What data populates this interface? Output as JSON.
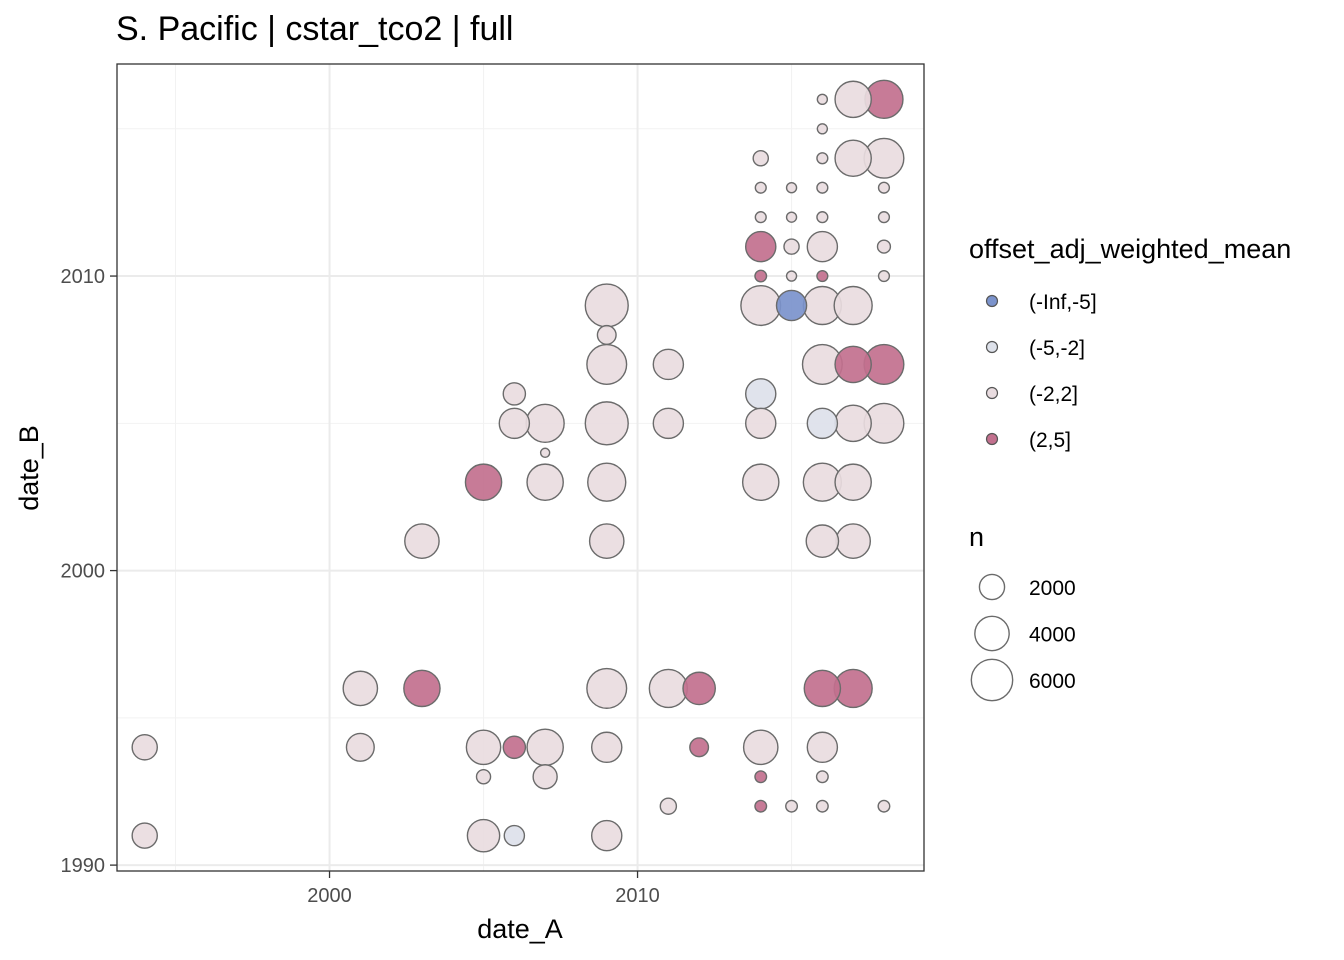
{
  "chart_data": {
    "type": "scatter",
    "title": "S. Pacific | cstar_tco2 | full",
    "xlabel": "date_A",
    "ylabel": "date_B",
    "xlim": [
      1993.1,
      2019.3
    ],
    "ylim": [
      1989.8,
      2017.2
    ],
    "x_ticks": [
      2000,
      2010
    ],
    "y_ticks": [
      1990,
      2000,
      2010
    ],
    "grid": true,
    "legend_position": "right",
    "color_legend": {
      "title": "offset_adj_weighted_mean",
      "entries": [
        {
          "label": "(-Inf,-5]",
          "color": "#7b93cc"
        },
        {
          "label": "(-5,-2]",
          "color": "#dde1ea"
        },
        {
          "label": "(-2,2]",
          "color": "#e9dce0"
        },
        {
          "label": "(2,5]",
          "color": "#c2708e"
        }
      ]
    },
    "size_legend": {
      "title": "n",
      "entries": [
        {
          "label": "2000",
          "value": 2000
        },
        {
          "label": "4000",
          "value": 4000
        },
        {
          "label": "6000",
          "value": 6000
        }
      ]
    },
    "points": [
      {
        "x": 1994,
        "y": 1994,
        "n": 2000,
        "bin": "(-2,2]"
      },
      {
        "x": 1994,
        "y": 1991,
        "n": 2000,
        "bin": "(-2,2]"
      },
      {
        "x": 2001,
        "y": 1996,
        "n": 4000,
        "bin": "(-2,2]"
      },
      {
        "x": 2001,
        "y": 1994,
        "n": 2500,
        "bin": "(-2,2]"
      },
      {
        "x": 2003,
        "y": 2001,
        "n": 4000,
        "bin": "(-2,2]"
      },
      {
        "x": 2003,
        "y": 1996,
        "n": 4500,
        "bin": "(2,5]"
      },
      {
        "x": 2005,
        "y": 2003,
        "n": 4500,
        "bin": "(2,5]"
      },
      {
        "x": 2005,
        "y": 1994,
        "n": 4000,
        "bin": "(-2,2]"
      },
      {
        "x": 2005,
        "y": 1993,
        "n": 500,
        "bin": "(-2,2]"
      },
      {
        "x": 2005,
        "y": 1991,
        "n": 3500,
        "bin": "(-2,2]"
      },
      {
        "x": 2006,
        "y": 2006,
        "n": 1500,
        "bin": "(-2,2]"
      },
      {
        "x": 2006,
        "y": 2005,
        "n": 3000,
        "bin": "(-2,2]"
      },
      {
        "x": 2006,
        "y": 1994,
        "n": 1500,
        "bin": "(2,5]"
      },
      {
        "x": 2006,
        "y": 1991,
        "n": 1200,
        "bin": "(-5,-2]"
      },
      {
        "x": 2007,
        "y": 2005,
        "n": 5000,
        "bin": "(-2,2]"
      },
      {
        "x": 2007,
        "y": 2004,
        "n": 150,
        "bin": "(-2,2]"
      },
      {
        "x": 2007,
        "y": 2003,
        "n": 4500,
        "bin": "(-2,2]"
      },
      {
        "x": 2007,
        "y": 1994,
        "n": 4500,
        "bin": "(-2,2]"
      },
      {
        "x": 2007,
        "y": 1993,
        "n": 1800,
        "bin": "(-2,2]"
      },
      {
        "x": 2009,
        "y": 2009,
        "n": 6500,
        "bin": "(-2,2]"
      },
      {
        "x": 2009,
        "y": 2008,
        "n": 1000,
        "bin": "(-2,2]"
      },
      {
        "x": 2009,
        "y": 2007,
        "n": 5500,
        "bin": "(-2,2]"
      },
      {
        "x": 2009,
        "y": 2005,
        "n": 6500,
        "bin": "(-2,2]"
      },
      {
        "x": 2009,
        "y": 2003,
        "n": 5000,
        "bin": "(-2,2]"
      },
      {
        "x": 2009,
        "y": 2001,
        "n": 4000,
        "bin": "(-2,2]"
      },
      {
        "x": 2009,
        "y": 1996,
        "n": 5500,
        "bin": "(-2,2]"
      },
      {
        "x": 2009,
        "y": 1994,
        "n": 3000,
        "bin": "(-2,2]"
      },
      {
        "x": 2009,
        "y": 1991,
        "n": 3000,
        "bin": "(-2,2]"
      },
      {
        "x": 2011,
        "y": 2007,
        "n": 3000,
        "bin": "(-2,2]"
      },
      {
        "x": 2011,
        "y": 2005,
        "n": 3000,
        "bin": "(-2,2]"
      },
      {
        "x": 2011,
        "y": 1996,
        "n": 5000,
        "bin": "(-2,2]"
      },
      {
        "x": 2011,
        "y": 1992,
        "n": 700,
        "bin": "(-2,2]"
      },
      {
        "x": 2012,
        "y": 1996,
        "n": 3500,
        "bin": "(2,5]"
      },
      {
        "x": 2012,
        "y": 1994,
        "n": 1000,
        "bin": "(2,5]"
      },
      {
        "x": 2014,
        "y": 2014,
        "n": 600,
        "bin": "(-2,2]"
      },
      {
        "x": 2014,
        "y": 2013,
        "n": 250,
        "bin": "(-2,2]"
      },
      {
        "x": 2014,
        "y": 2012,
        "n": 250,
        "bin": "(-2,2]"
      },
      {
        "x": 2014,
        "y": 2011,
        "n": 3000,
        "bin": "(2,5]"
      },
      {
        "x": 2014,
        "y": 2010,
        "n": 300,
        "bin": "(2,5]"
      },
      {
        "x": 2014,
        "y": 2009,
        "n": 5500,
        "bin": "(-2,2]"
      },
      {
        "x": 2014,
        "y": 2006,
        "n": 3000,
        "bin": "(-5,-2]"
      },
      {
        "x": 2014,
        "y": 2005,
        "n": 3000,
        "bin": "(-2,2]"
      },
      {
        "x": 2014,
        "y": 2003,
        "n": 4500,
        "bin": "(-2,2]"
      },
      {
        "x": 2014,
        "y": 1994,
        "n": 4000,
        "bin": "(-2,2]"
      },
      {
        "x": 2014,
        "y": 1993,
        "n": 300,
        "bin": "(2,5]"
      },
      {
        "x": 2014,
        "y": 1992,
        "n": 300,
        "bin": "(2,5]"
      },
      {
        "x": 2015,
        "y": 2013,
        "n": 200,
        "bin": "(-2,2]"
      },
      {
        "x": 2015,
        "y": 2012,
        "n": 200,
        "bin": "(-2,2]"
      },
      {
        "x": 2015,
        "y": 2011,
        "n": 600,
        "bin": "(-2,2]"
      },
      {
        "x": 2015,
        "y": 2010,
        "n": 200,
        "bin": "(-2,2]"
      },
      {
        "x": 2015,
        "y": 2009,
        "n": 3000,
        "bin": "(-Inf,-5]"
      },
      {
        "x": 2015,
        "y": 1992,
        "n": 300,
        "bin": "(-2,2]"
      },
      {
        "x": 2016,
        "y": 2016,
        "n": 200,
        "bin": "(-2,2]"
      },
      {
        "x": 2016,
        "y": 2015,
        "n": 200,
        "bin": "(-2,2]"
      },
      {
        "x": 2016,
        "y": 2014,
        "n": 250,
        "bin": "(-2,2]"
      },
      {
        "x": 2016,
        "y": 2013,
        "n": 250,
        "bin": "(-2,2]"
      },
      {
        "x": 2016,
        "y": 2012,
        "n": 250,
        "bin": "(-2,2]"
      },
      {
        "x": 2016,
        "y": 2011,
        "n": 3000,
        "bin": "(-2,2]"
      },
      {
        "x": 2016,
        "y": 2010,
        "n": 250,
        "bin": "(2,5]"
      },
      {
        "x": 2016,
        "y": 2009,
        "n": 5000,
        "bin": "(-2,2]"
      },
      {
        "x": 2016,
        "y": 2007,
        "n": 5500,
        "bin": "(-2,2]"
      },
      {
        "x": 2016,
        "y": 2005,
        "n": 3000,
        "bin": "(-5,-2]"
      },
      {
        "x": 2016,
        "y": 2003,
        "n": 5000,
        "bin": "(-2,2]"
      },
      {
        "x": 2016,
        "y": 2001,
        "n": 3500,
        "bin": "(-2,2]"
      },
      {
        "x": 2016,
        "y": 1996,
        "n": 4500,
        "bin": "(2,5]"
      },
      {
        "x": 2016,
        "y": 1994,
        "n": 3000,
        "bin": "(-2,2]"
      },
      {
        "x": 2016,
        "y": 1993,
        "n": 300,
        "bin": "(-2,2]"
      },
      {
        "x": 2016,
        "y": 1992,
        "n": 300,
        "bin": "(-2,2]"
      },
      {
        "x": 2017,
        "y": 2016,
        "n": 4500,
        "bin": "(-2,2]"
      },
      {
        "x": 2017,
        "y": 2014,
        "n": 4500,
        "bin": "(-2,2]"
      },
      {
        "x": 2017,
        "y": 2009,
        "n": 5000,
        "bin": "(-2,2]"
      },
      {
        "x": 2017,
        "y": 2007,
        "n": 4500,
        "bin": "(2,5]"
      },
      {
        "x": 2017,
        "y": 2005,
        "n": 4500,
        "bin": "(-2,2]"
      },
      {
        "x": 2017,
        "y": 2003,
        "n": 4500,
        "bin": "(-2,2]"
      },
      {
        "x": 2017,
        "y": 2001,
        "n": 4000,
        "bin": "(-2,2]"
      },
      {
        "x": 2017,
        "y": 1996,
        "n": 5000,
        "bin": "(2,5]"
      },
      {
        "x": 2018,
        "y": 2016,
        "n": 5000,
        "bin": "(2,5]"
      },
      {
        "x": 2018,
        "y": 2014,
        "n": 5500,
        "bin": "(-2,2]"
      },
      {
        "x": 2018,
        "y": 2013,
        "n": 250,
        "bin": "(-2,2]"
      },
      {
        "x": 2018,
        "y": 2012,
        "n": 250,
        "bin": "(-2,2]"
      },
      {
        "x": 2018,
        "y": 2011,
        "n": 400,
        "bin": "(-2,2]"
      },
      {
        "x": 2018,
        "y": 2010,
        "n": 250,
        "bin": "(-2,2]"
      },
      {
        "x": 2018,
        "y": 2007,
        "n": 5500,
        "bin": "(2,5]"
      },
      {
        "x": 2018,
        "y": 2005,
        "n": 5500,
        "bin": "(-2,2]"
      },
      {
        "x": 2018,
        "y": 1992,
        "n": 300,
        "bin": "(-2,2]"
      }
    ]
  }
}
